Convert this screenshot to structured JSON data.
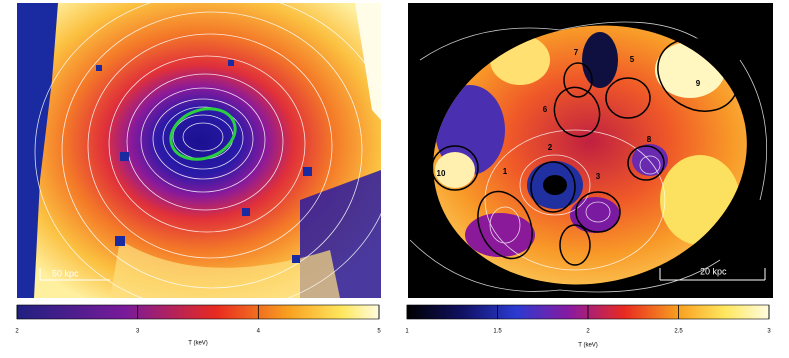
{
  "panels": [
    {
      "scale_bar": "50 kpc",
      "colorbar": {
        "lim": [
          2,
          5
        ],
        "ticks": [
          2,
          3,
          4,
          5
        ],
        "label": "T (keV)"
      }
    },
    {
      "scale_bar": "20 kpc",
      "colorbar": {
        "lim": [
          1,
          3
        ],
        "ticks": [
          1,
          1.5,
          2,
          2.5,
          3
        ],
        "label": "T (keV)"
      },
      "regions": [
        "1",
        "2",
        "3",
        "5",
        "6",
        "7",
        "8",
        "9",
        "10"
      ]
    }
  ]
}
